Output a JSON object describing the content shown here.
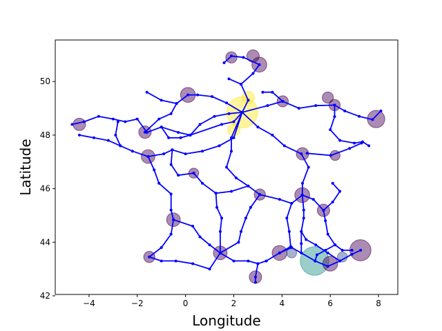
{
  "chart_data": {
    "type": "scatter",
    "title": "",
    "xlabel": "Longitude",
    "ylabel": "Latitude",
    "xlim": [
      -5.4,
      8.8
    ],
    "ylim": [
      42.05,
      51.55
    ],
    "xticks": [
      -4,
      -2,
      0,
      2,
      4,
      6,
      8
    ],
    "yticks": [
      42,
      44,
      46,
      48,
      50
    ],
    "grid": false,
    "legend": "none",
    "colors": {
      "network": "#0000ff",
      "node": "#440154",
      "node_mid": "#3b528b",
      "node_teal": "#21918c",
      "node_yellow": "#fde725"
    },
    "series": [
      {
        "kind": "network-lines",
        "polylines": [
          [
            [
              -4.7,
              48.4
            ],
            [
              -4.2,
              48.5
            ],
            [
              -3.6,
              48.7
            ],
            [
              -3.0,
              48.6
            ],
            [
              -2.5,
              48.5
            ],
            [
              -2.0,
              48.6
            ],
            [
              -1.6,
              48.1
            ],
            [
              -1.0,
              48.3
            ],
            [
              -0.3,
              48.1
            ],
            [
              0.2,
              48.0
            ],
            [
              0.6,
              48.4
            ],
            [
              1.2,
              48.7
            ],
            [
              1.8,
              48.8
            ],
            [
              2.35,
              48.85
            ]
          ],
          [
            [
              -4.4,
              48.0
            ],
            [
              -3.8,
              47.9
            ],
            [
              -3.2,
              47.8
            ],
            [
              -2.7,
              47.6
            ],
            [
              -2.2,
              47.4
            ],
            [
              -1.55,
              47.2
            ],
            [
              -0.9,
              47.3
            ],
            [
              -0.55,
              47.45
            ],
            [
              0.0,
              47.3
            ],
            [
              0.7,
              47.4
            ],
            [
              1.4,
              47.6
            ],
            [
              2.0,
              47.9
            ],
            [
              2.35,
              48.85
            ]
          ],
          [
            [
              -1.55,
              47.2
            ],
            [
              -1.3,
              46.7
            ],
            [
              -1.1,
              46.2
            ],
            [
              -0.6,
              45.8
            ],
            [
              -0.6,
              45.2
            ],
            [
              -0.5,
              44.84
            ],
            [
              -0.6,
              44.3
            ],
            [
              -1.0,
              43.8
            ],
            [
              -1.5,
              43.45
            ]
          ],
          [
            [
              -0.5,
              44.84
            ],
            [
              0.3,
              44.6
            ],
            [
              0.6,
              44.2
            ],
            [
              1.0,
              43.9
            ],
            [
              1.44,
              43.6
            ],
            [
              2.0,
              43.3
            ],
            [
              2.6,
              43.3
            ],
            [
              3.0,
              43.2
            ],
            [
              3.35,
              43.3
            ],
            [
              3.9,
              43.6
            ],
            [
              4.4,
              43.8
            ],
            [
              4.8,
              43.6
            ],
            [
              5.37,
              43.3
            ],
            [
              5.9,
              43.1
            ],
            [
              6.4,
              43.3
            ],
            [
              6.9,
              43.55
            ],
            [
              7.26,
              43.7
            ]
          ],
          [
            [
              1.44,
              43.6
            ],
            [
              1.0,
              43.0
            ],
            [
              0.3,
              43.2
            ],
            [
              -0.4,
              43.3
            ],
            [
              -1.0,
              43.3
            ],
            [
              -1.5,
              43.45
            ]
          ],
          [
            [
              3.0,
              43.2
            ],
            [
              2.9,
              42.7
            ],
            [
              2.9,
              42.5
            ]
          ],
          [
            [
              2.35,
              48.85
            ],
            [
              3.0,
              48.3
            ],
            [
              3.6,
              48.0
            ],
            [
              4.1,
              47.6
            ],
            [
              4.8,
              47.3
            ],
            [
              5.1,
              46.8
            ],
            [
              4.85,
              46.2
            ],
            [
              4.84,
              45.76
            ],
            [
              4.9,
              45.2
            ],
            [
              4.9,
              44.9
            ],
            [
              4.8,
              44.4
            ],
            [
              4.8,
              43.95
            ],
            [
              4.8,
              43.6
            ]
          ],
          [
            [
              4.84,
              45.76
            ],
            [
              5.3,
              45.6
            ],
            [
              5.72,
              45.19
            ],
            [
              6.1,
              45.5
            ],
            [
              6.4,
              45.9
            ],
            [
              6.1,
              46.2
            ]
          ],
          [
            [
              4.84,
              45.76
            ],
            [
              4.4,
              45.45
            ],
            [
              3.9,
              45.6
            ],
            [
              3.08,
              45.78
            ],
            [
              2.6,
              46.1
            ],
            [
              2.1,
              46.4
            ],
            [
              1.7,
              46.8
            ],
            [
              1.9,
              47.4
            ],
            [
              1.9,
              47.9
            ],
            [
              2.35,
              48.85
            ]
          ],
          [
            [
              3.08,
              45.78
            ],
            [
              2.7,
              45.3
            ],
            [
              2.5,
              44.9
            ],
            [
              2.3,
              44.4
            ],
            [
              2.2,
              44.0
            ],
            [
              1.44,
              43.6
            ]
          ],
          [
            [
              1.26,
              45.83
            ],
            [
              1.3,
              45.3
            ],
            [
              1.5,
              44.9
            ],
            [
              1.44,
              44.4
            ],
            [
              1.44,
              43.6
            ]
          ],
          [
            [
              0.34,
              46.58
            ],
            [
              0.7,
              46.2
            ],
            [
              1.26,
              45.83
            ],
            [
              1.9,
              45.9
            ],
            [
              2.6,
              46.1
            ]
          ],
          [
            [
              2.35,
              48.85
            ],
            [
              2.6,
              49.3
            ],
            [
              2.3,
              49.9
            ],
            [
              2.8,
              50.3
            ],
            [
              3.06,
              50.63
            ],
            [
              2.4,
              50.9
            ],
            [
              1.9,
              50.95
            ],
            [
              1.6,
              50.7
            ]
          ],
          [
            [
              2.35,
              48.85
            ],
            [
              3.4,
              49.1
            ],
            [
              4.03,
              49.26
            ],
            [
              4.7,
              49.0
            ],
            [
              5.4,
              49.1
            ],
            [
              6.18,
              49.12
            ],
            [
              6.6,
              48.9
            ],
            [
              7.2,
              48.7
            ],
            [
              7.75,
              48.58
            ],
            [
              8.1,
              48.9
            ]
          ],
          [
            [
              6.18,
              49.12
            ],
            [
              6.18,
              48.69
            ],
            [
              6.0,
              48.2
            ],
            [
              6.4,
              47.8
            ],
            [
              7.0,
              47.7
            ],
            [
              7.34,
              47.75
            ],
            [
              7.6,
              47.6
            ]
          ],
          [
            [
              5.04,
              47.32
            ],
            [
              6.02,
              47.24
            ],
            [
              6.8,
              47.5
            ],
            [
              7.3,
              47.7
            ]
          ],
          [
            [
              2.35,
              48.85
            ],
            [
              1.7,
              49.2
            ],
            [
              1.1,
              49.44
            ],
            [
              0.5,
              49.5
            ],
            [
              0.1,
              49.5
            ],
            [
              -0.37,
              49.18
            ],
            [
              -1.0,
              49.3
            ],
            [
              -1.6,
              49.6
            ]
          ],
          [
            [
              -0.37,
              49.18
            ],
            [
              -0.6,
              48.8
            ],
            [
              -1.1,
              48.6
            ],
            [
              -1.68,
              48.11
            ]
          ],
          [
            [
              2.35,
              48.85
            ],
            [
              2.0,
              48.5
            ],
            [
              1.5,
              48.4
            ],
            [
              0.2,
              48.0
            ]
          ],
          [
            [
              5.72,
              45.19
            ],
            [
              5.8,
              44.8
            ],
            [
              5.9,
              44.3
            ],
            [
              6.2,
              43.9
            ],
            [
              6.5,
              43.7
            ],
            [
              6.9,
              43.7
            ]
          ],
          [
            [
              4.8,
              44.4
            ],
            [
              5.0,
              44.1
            ],
            [
              5.4,
              43.9
            ],
            [
              5.9,
              43.6
            ],
            [
              6.4,
              43.3
            ]
          ],
          [
            [
              -0.55,
              47.45
            ],
            [
              -0.6,
              46.9
            ],
            [
              -0.3,
              46.5
            ],
            [
              0.34,
              46.58
            ]
          ],
          [
            [
              3.9,
              43.6
            ],
            [
              4.36,
              43.84
            ],
            [
              4.3,
              44.4
            ],
            [
              4.2,
              44.9
            ],
            [
              4.4,
              45.45
            ]
          ],
          [
            [
              -1.0,
              48.3
            ],
            [
              -0.7,
              47.9
            ],
            [
              -0.2,
              47.9
            ],
            [
              0.2,
              48.0
            ]
          ],
          [
            [
              -2.8,
              48.5
            ],
            [
              -2.9,
              48.0
            ],
            [
              -2.7,
              47.6
            ]
          ],
          [
            [
              1.8,
              50.1
            ],
            [
              2.3,
              49.9
            ]
          ],
          [
            [
              3.2,
              49.6
            ],
            [
              3.6,
              49.6
            ],
            [
              4.03,
              49.26
            ]
          ],
          [
            [
              5.37,
              43.3
            ],
            [
              5.45,
              43.53
            ],
            [
              5.8,
              43.7
            ],
            [
              6.2,
              43.9
            ]
          ]
        ]
      },
      {
        "kind": "node-circles",
        "points": [
          {
            "x": 5.35,
            "y": 43.3,
            "size": 4.6,
            "color": "#21918c"
          },
          {
            "x": 2.35,
            "y": 48.85,
            "size": 5.0,
            "color": "#fde725"
          },
          {
            "x": 2.0,
            "y": 48.2,
            "size": 2.0,
            "color": "#fde725"
          },
          {
            "x": 2.6,
            "y": 49.4,
            "size": 2.0,
            "color": "#fde725"
          },
          {
            "x": 7.25,
            "y": 43.7,
            "size": 3.4,
            "color": "#440154"
          },
          {
            "x": 7.9,
            "y": 48.6,
            "size": 2.8,
            "color": "#440154"
          },
          {
            "x": 3.9,
            "y": 43.6,
            "size": 2.4,
            "color": "#440154"
          },
          {
            "x": 6.0,
            "y": 43.2,
            "size": 2.4,
            "color": "#440154"
          },
          {
            "x": 2.9,
            "y": 42.7,
            "size": 2.0,
            "color": "#440154"
          },
          {
            "x": 0.1,
            "y": 49.5,
            "size": 2.4,
            "color": "#440154"
          },
          {
            "x": 2.8,
            "y": 50.95,
            "size": 2.0,
            "color": "#440154"
          },
          {
            "x": 1.9,
            "y": 50.9,
            "size": 1.8,
            "color": "#440154"
          },
          {
            "x": 3.06,
            "y": 50.63,
            "size": 2.4,
            "color": "#440154"
          },
          {
            "x": 4.85,
            "y": 47.3,
            "size": 2.0,
            "color": "#440154"
          },
          {
            "x": 4.84,
            "y": 45.76,
            "size": 2.4,
            "color": "#440154"
          },
          {
            "x": 5.72,
            "y": 45.19,
            "size": 2.0,
            "color": "#440154"
          },
          {
            "x": 1.44,
            "y": 43.6,
            "size": 2.2,
            "color": "#440154"
          },
          {
            "x": -0.5,
            "y": 44.84,
            "size": 2.2,
            "color": "#440154"
          },
          {
            "x": -1.55,
            "y": 47.2,
            "size": 2.2,
            "color": "#440154"
          },
          {
            "x": -4.4,
            "y": 48.4,
            "size": 2.0,
            "color": "#440154"
          },
          {
            "x": -1.68,
            "y": 48.11,
            "size": 2.0,
            "color": "#440154"
          },
          {
            "x": 6.18,
            "y": 49.12,
            "size": 1.8,
            "color": "#440154"
          },
          {
            "x": 4.03,
            "y": 49.26,
            "size": 1.8,
            "color": "#440154"
          },
          {
            "x": -1.5,
            "y": 43.45,
            "size": 1.8,
            "color": "#440154"
          },
          {
            "x": 3.08,
            "y": 45.78,
            "size": 1.8,
            "color": "#440154"
          },
          {
            "x": 0.34,
            "y": 46.58,
            "size": 1.6,
            "color": "#440154"
          },
          {
            "x": 6.2,
            "y": 47.24,
            "size": 1.6,
            "color": "#440154"
          },
          {
            "x": 5.9,
            "y": 49.4,
            "size": 1.8,
            "color": "#440154"
          },
          {
            "x": 4.4,
            "y": 43.6,
            "size": 1.6,
            "color": "#3b528b"
          },
          {
            "x": 6.5,
            "y": 43.45,
            "size": 1.6,
            "color": "#3b528b"
          }
        ]
      }
    ]
  }
}
